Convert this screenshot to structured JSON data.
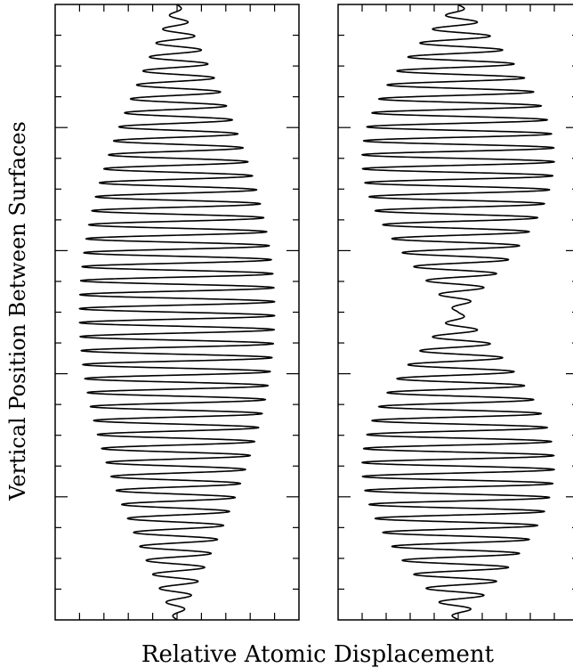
{
  "chart_data": {
    "type": "line",
    "title": "",
    "xlabel": "Relative Atomic Displacement",
    "ylabel": "Vertical Position Between Surfaces",
    "grid": false,
    "panels": [
      {
        "name": "",
        "mode": 1,
        "x_ticks": 9,
        "y_major_ticks": 4,
        "y_minor_per_major": 4
      },
      {
        "name": "",
        "mode": 2,
        "x_ticks": 9,
        "y_major_ticks": 4,
        "y_minor_per_major": 4
      }
    ],
    "series": [
      {
        "name": "",
        "description_mode": 1,
        "cycles": 44,
        "amplitude_max": 0.8,
        "amplitude_min": 0.02
      },
      {
        "name": "",
        "description_mode": 2,
        "cycles": 44,
        "amplitude_max": 0.8,
        "amplitude_min": 0.02
      }
    ]
  }
}
